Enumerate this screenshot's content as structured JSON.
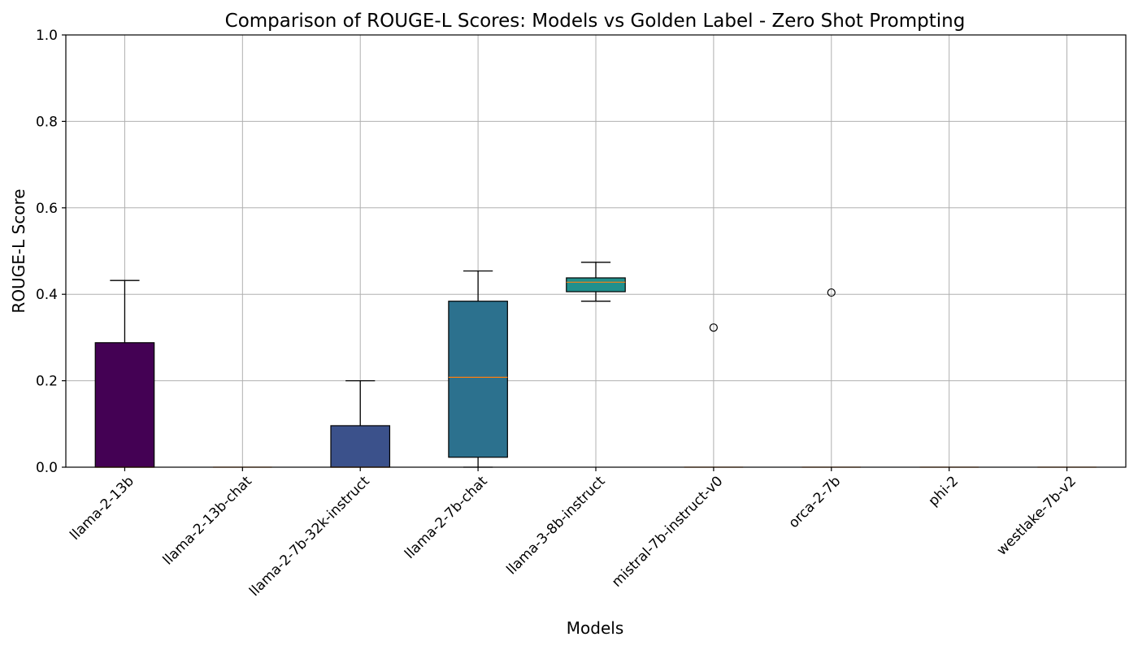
{
  "chart_data": {
    "type": "box",
    "title": "Comparison of ROUGE-L Scores: Models vs Golden Label - Zero Shot Prompting",
    "xlabel": "Models",
    "ylabel": "ROUGE-L Score",
    "ylim": [
      0,
      1
    ],
    "yticks": [
      "0.0",
      "0.2",
      "0.4",
      "0.6",
      "0.8",
      "1.0"
    ],
    "grid": true,
    "categories": [
      "llama-2-13b",
      "llama-2-13b-chat",
      "llama-2-7b-32k-instruct",
      "llama-2-7b-chat",
      "llama-3-8b-instruct",
      "mistral-7b-instruct-v0",
      "orca-2-7b",
      "phi-2",
      "westlake-7b-v2"
    ],
    "boxes": [
      {
        "whisker_low": 0.0,
        "q1": 0.0,
        "median": 0.0,
        "q3": 0.288,
        "whisker_high": 0.432,
        "outliers": [],
        "color": "#440154"
      },
      {
        "whisker_low": 0.0,
        "q1": 0.0,
        "median": 0.0,
        "q3": 0.0,
        "whisker_high": 0.0,
        "outliers": [],
        "color": "#472c7a"
      },
      {
        "whisker_low": 0.0,
        "q1": 0.0,
        "median": 0.0,
        "q3": 0.096,
        "whisker_high": 0.2,
        "outliers": [],
        "color": "#3b518b"
      },
      {
        "whisker_low": 0.0,
        "q1": 0.023,
        "median": 0.208,
        "q3": 0.384,
        "whisker_high": 0.454,
        "outliers": [],
        "color": "#2c718e"
      },
      {
        "whisker_low": 0.384,
        "q1": 0.406,
        "median": 0.428,
        "q3": 0.438,
        "whisker_high": 0.474,
        "outliers": [],
        "color": "#21908d"
      },
      {
        "whisker_low": 0.0,
        "q1": 0.0,
        "median": 0.0,
        "q3": 0.0,
        "whisker_high": 0.0,
        "outliers": [
          0.323
        ],
        "color": "#27ad81"
      },
      {
        "whisker_low": 0.0,
        "q1": 0.0,
        "median": 0.0,
        "q3": 0.0,
        "whisker_high": 0.0,
        "outliers": [
          0.404
        ],
        "color": "#5cc863"
      },
      {
        "whisker_low": 0.0,
        "q1": 0.0,
        "median": 0.0,
        "q3": 0.0,
        "whisker_high": 0.0,
        "outliers": [],
        "color": "#aadc32"
      },
      {
        "whisker_low": 0.0,
        "q1": 0.0,
        "median": 0.0,
        "q3": 0.0,
        "whisker_high": 0.0,
        "outliers": [],
        "color": "#fde725"
      }
    ],
    "median_color": "#ff7f0e"
  }
}
